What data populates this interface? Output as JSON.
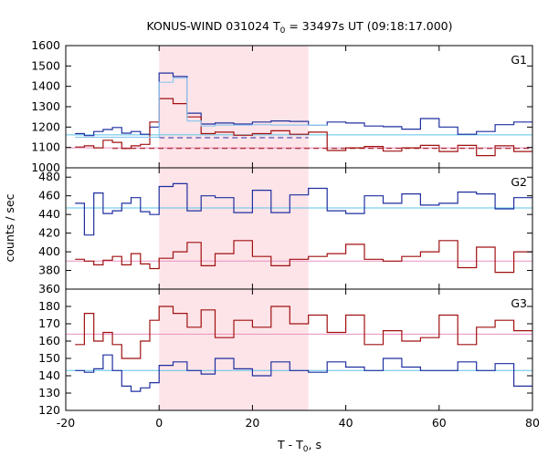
{
  "title": {
    "prefix": "KONUS-WIND 031024 T",
    "sub": "0",
    "suffix": " = 33497s UT (09:18:17.000)"
  },
  "xlabel": {
    "prefix": "T - T",
    "sub": "0",
    "suffix": ", s"
  },
  "ylabel": "counts / sec",
  "colors": {
    "series_blue": "#1f2fa0",
    "series_red": "#a01010",
    "fit_blue": "#5bc3e8",
    "fit_red": "#e890c0",
    "light_blue": "#8fc8f0",
    "shade": "#fde4e8"
  },
  "chart_data": [
    {
      "type": "line",
      "step": true,
      "panel": "G1",
      "xlim": [
        -20,
        80
      ],
      "ylim": [
        1000,
        1600
      ],
      "yticks": [
        1000,
        1100,
        1200,
        1300,
        1400,
        1500,
        1600
      ],
      "xticks": [
        -20,
        0,
        20,
        40,
        60,
        80
      ],
      "shaded_interval": [
        0,
        32
      ],
      "bin_edges": [
        -18,
        -16,
        -14,
        -12,
        -10,
        -8,
        -6,
        -4,
        -2,
        0,
        3,
        6,
        9,
        12,
        16,
        20,
        24,
        28,
        32,
        36,
        40,
        44,
        48,
        52,
        56,
        60,
        64,
        68,
        72,
        76,
        80
      ],
      "series": [
        {
          "color": "blue",
          "values": [
            1168,
            1158,
            1178,
            1188,
            1198,
            1170,
            1178,
            1165,
            1200,
            1465,
            1448,
            1268,
            1215,
            1220,
            1215,
            1225,
            1230,
            1228,
            1210,
            1225,
            1220,
            1205,
            1202,
            1190,
            1242,
            1200,
            1165,
            1178,
            1212,
            1225
          ]
        },
        {
          "color": "red",
          "values": [
            1102,
            1108,
            1098,
            1135,
            1125,
            1095,
            1108,
            1115,
            1225,
            1340,
            1315,
            1250,
            1168,
            1175,
            1160,
            1168,
            1182,
            1165,
            1175,
            1085,
            1098,
            1105,
            1082,
            1098,
            1110,
            1080,
            1110,
            1060,
            1108,
            1080
          ]
        },
        {
          "color": "light_blue",
          "values": [
            1150,
            1150,
            1150,
            1150,
            1150,
            1150,
            1150,
            1150,
            1150,
            1420,
            1440,
            1230,
            1205,
            1210,
            1210,
            1212,
            1210,
            1210,
            1210
          ]
        }
      ],
      "fits": [
        {
          "color": "fit_blue",
          "style": "solid",
          "value": 1162
        },
        {
          "color": "fit_red",
          "style": "solid",
          "value": 1098
        },
        {
          "color": "series_blue",
          "style": "dashed",
          "value": 1148,
          "from": 0,
          "to": 32
        },
        {
          "color": "series_red",
          "style": "dashed",
          "value": 1095,
          "from": -10,
          "to": 80
        }
      ]
    },
    {
      "type": "line",
      "step": true,
      "panel": "G2",
      "xlim": [
        -20,
        80
      ],
      "ylim": [
        360,
        490
      ],
      "yticks": [
        360,
        380,
        400,
        420,
        440,
        460,
        480
      ],
      "shaded_interval": [
        0,
        32
      ],
      "bin_edges": [
        -18,
        -16,
        -14,
        -12,
        -10,
        -8,
        -6,
        -4,
        -2,
        0,
        3,
        6,
        9,
        12,
        16,
        20,
        24,
        28,
        32,
        36,
        40,
        44,
        48,
        52,
        56,
        60,
        64,
        68,
        72,
        76,
        80
      ],
      "series": [
        {
          "color": "blue",
          "values": [
            452,
            418,
            463,
            441,
            444,
            452,
            458,
            443,
            440,
            470,
            473,
            444,
            460,
            458,
            442,
            466,
            442,
            461,
            468,
            444,
            441,
            460,
            452,
            462,
            450,
            452,
            464,
            462,
            446,
            458
          ]
        },
        {
          "color": "red",
          "values": [
            392,
            390,
            386,
            391,
            395,
            386,
            398,
            387,
            382,
            393,
            400,
            410,
            385,
            398,
            412,
            395,
            385,
            392,
            395,
            398,
            408,
            392,
            390,
            395,
            400,
            412,
            383,
            405,
            378,
            400
          ]
        }
      ],
      "fits": [
        {
          "color": "fit_blue",
          "style": "solid",
          "value": 447
        },
        {
          "color": "fit_red",
          "style": "solid",
          "value": 390
        }
      ]
    },
    {
      "type": "line",
      "step": true,
      "panel": "G3",
      "xlim": [
        -20,
        80
      ],
      "ylim": [
        120,
        190
      ],
      "yticks": [
        120,
        130,
        140,
        150,
        160,
        170,
        180
      ],
      "shaded_interval": [
        0,
        32
      ],
      "bin_edges": [
        -18,
        -16,
        -14,
        -12,
        -10,
        -8,
        -6,
        -4,
        -2,
        0,
        3,
        6,
        9,
        12,
        16,
        20,
        24,
        28,
        32,
        36,
        40,
        44,
        48,
        52,
        56,
        60,
        64,
        68,
        72,
        76,
        80
      ],
      "series": [
        {
          "color": "blue",
          "values": [
            143,
            142,
            144,
            152,
            143,
            134,
            131,
            133,
            136,
            146,
            148,
            143,
            141,
            150,
            144,
            140,
            148,
            143,
            142,
            148,
            145,
            143,
            150,
            145,
            143,
            143,
            148,
            143,
            147,
            134
          ]
        },
        {
          "color": "red",
          "values": [
            158,
            176,
            160,
            165,
            158,
            150,
            150,
            160,
            172,
            180,
            176,
            168,
            178,
            162,
            172,
            168,
            180,
            170,
            175,
            165,
            175,
            158,
            166,
            160,
            162,
            175,
            158,
            168,
            172,
            166
          ]
        }
      ],
      "fits": [
        {
          "color": "fit_blue",
          "style": "solid",
          "value": 143
        },
        {
          "color": "fit_red",
          "style": "solid",
          "value": 164
        }
      ]
    }
  ]
}
